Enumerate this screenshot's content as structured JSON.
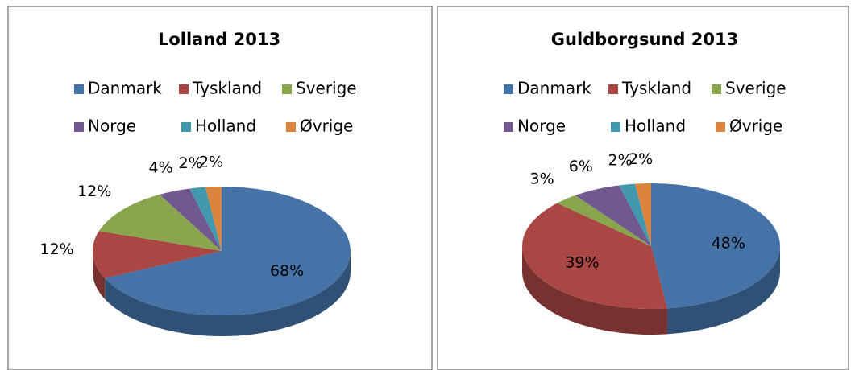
{
  "chart_data": [
    {
      "type": "pie",
      "title": "Lolland 2013",
      "categories": [
        "Danmark",
        "Tyskland",
        "Sverige",
        "Norge",
        "Holland",
        "Øvrige"
      ],
      "values": [
        68,
        12,
        12,
        4,
        2,
        2
      ],
      "value_labels": [
        "68%",
        "12%",
        "12%",
        "4%",
        "2%",
        "2%"
      ],
      "colors": [
        "#4572a7",
        "#aa4643",
        "#89a54e",
        "#71588f",
        "#4198af",
        "#db843d"
      ]
    },
    {
      "type": "pie",
      "title": "Guldborgsund 2013",
      "categories": [
        "Danmark",
        "Tyskland",
        "Sverige",
        "Norge",
        "Holland",
        "Øvrige"
      ],
      "values": [
        48,
        39,
        3,
        6,
        2,
        2
      ],
      "value_labels": [
        "48%",
        "39%",
        "3%",
        "6%",
        "2%",
        "2%"
      ],
      "colors": [
        "#4572a7",
        "#aa4643",
        "#89a54e",
        "#71588f",
        "#4198af",
        "#db843d"
      ]
    }
  ]
}
